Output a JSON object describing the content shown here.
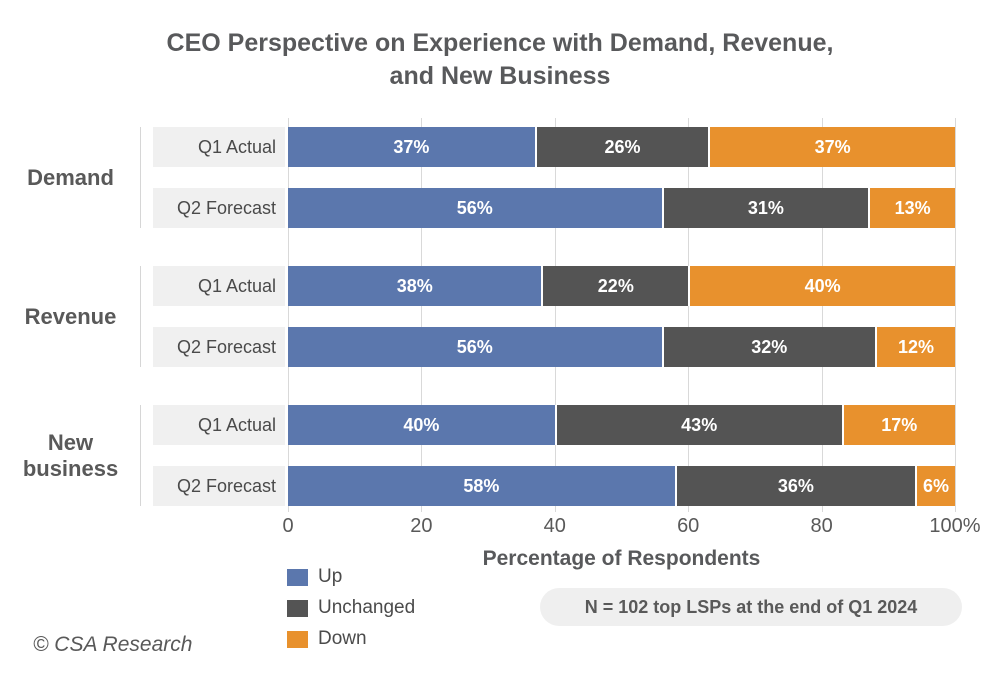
{
  "chart_data": {
    "type": "bar",
    "orientation": "horizontal-stacked",
    "title": "CEO Perspective on Experience with Demand, Revenue, and New Business",
    "title_lines": [
      "CEO Perspective on Experience with Demand, Revenue,",
      "and New Business"
    ],
    "xlabel": "Percentage of Respondents",
    "x_ticks": [
      "0",
      "20",
      "40",
      "60",
      "80",
      "100%"
    ],
    "xlim": [
      0,
      100
    ],
    "grid": "vertical",
    "value_suffix": "%",
    "legend_position": "bottom-left",
    "legend": [
      {
        "name": "Up",
        "color": "#5b77ad"
      },
      {
        "name": "Unchanged",
        "color": "#545454"
      },
      {
        "name": "Down",
        "color": "#e8912d"
      }
    ],
    "groups": [
      {
        "label": "Demand",
        "rows": [
          {
            "label": "Q1 Actual",
            "values": [
              37,
              26,
              37
            ]
          },
          {
            "label": "Q2 Forecast",
            "values": [
              56,
              31,
              13
            ]
          }
        ]
      },
      {
        "label": "Revenue",
        "rows": [
          {
            "label": "Q1 Actual",
            "values": [
              38,
              22,
              40
            ]
          },
          {
            "label": "Q2 Forecast",
            "values": [
              56,
              32,
              12
            ]
          }
        ]
      },
      {
        "label": "New\nbusiness",
        "rows": [
          {
            "label": "Q1 Actual",
            "values": [
              40,
              43,
              17
            ]
          },
          {
            "label": "Q2 Forecast",
            "values": [
              58,
              36,
              6
            ]
          }
        ]
      }
    ],
    "note": "N = 102 top LSPs at the end of Q1 2024",
    "footer": "© CSA Research",
    "colors": {
      "title_text": "#58595b",
      "row_label_bg": "#f0f0f0",
      "gridline": "#d9d9d9",
      "note_bg": "#efefef"
    }
  }
}
